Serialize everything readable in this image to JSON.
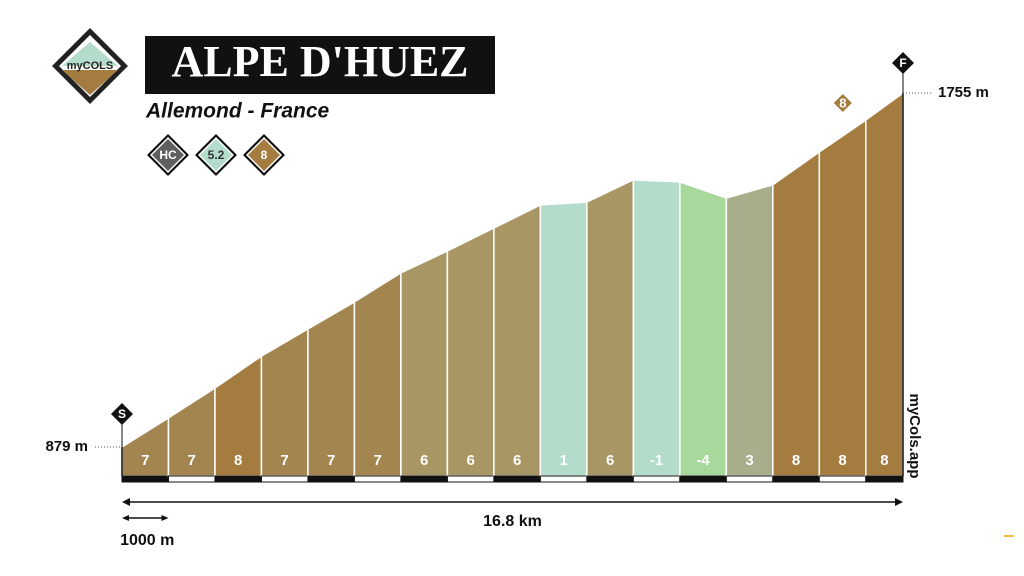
{
  "chart_data": {
    "type": "profile",
    "title": "ALPE D'HUEZ",
    "subtitle": "Allemond - France",
    "logo": "myCOLS",
    "watermark": "myCols.app",
    "badges": [
      {
        "text": "HC",
        "color": "#5f5f5f",
        "text_color": "#ffffff"
      },
      {
        "text": 5.2,
        "color": "#b3dccb",
        "text_color": "#333333"
      },
      {
        "text": 8,
        "color": "#a57c3f",
        "text_color": "#ffffff"
      }
    ],
    "start_marker": "S",
    "finish_marker": "F",
    "max_grade_flag": 8,
    "x": [
      0,
      1,
      2,
      3,
      4,
      5,
      6,
      7,
      8,
      9,
      10,
      11,
      12,
      13,
      14,
      15,
      16,
      16.8
    ],
    "elevations": [
      879,
      951,
      1025,
      1104,
      1171,
      1238,
      1310,
      1364,
      1421,
      1478,
      1485,
      1540,
      1535,
      1495,
      1528,
      1609,
      1688,
      1755
    ],
    "value_labels": [
      "879 m",
      null,
      null,
      null,
      null,
      null,
      null,
      null,
      null,
      null,
      null,
      null,
      null,
      null,
      null,
      null,
      null,
      "1755 m"
    ],
    "grades": [
      7,
      7,
      8,
      7,
      7,
      7,
      6,
      6,
      6,
      1,
      6,
      -1,
      -4,
      3,
      8,
      8,
      8
    ],
    "segment_colors": [
      "#a3854f",
      "#a3854f",
      "#a57c3f",
      "#a3854f",
      "#a3854f",
      "#a3854f",
      "#a89664",
      "#a89664",
      "#a89664",
      "#b3dccb",
      "#a89664",
      "#b3dccb",
      "#a8d89c",
      "#a7ae8b",
      "#a57c3f",
      "#a57c3f",
      "#a57c3f"
    ],
    "total_distance": {
      "value": 16.8,
      "label": "16.8 km"
    },
    "scale_bar": {
      "value": 1000,
      "label": "1000 m"
    }
  }
}
